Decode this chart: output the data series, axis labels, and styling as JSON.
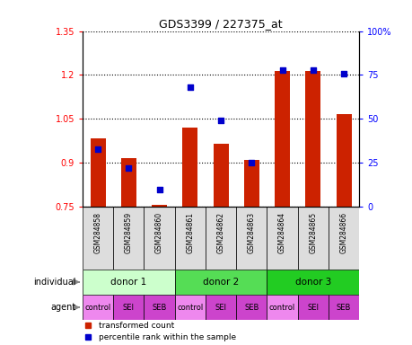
{
  "title": "GDS3399 / 227375_at",
  "samples": [
    "GSM284858",
    "GSM284859",
    "GSM284860",
    "GSM284861",
    "GSM284862",
    "GSM284863",
    "GSM284864",
    "GSM284865",
    "GSM284866"
  ],
  "red_values": [
    0.985,
    0.915,
    0.757,
    1.02,
    0.965,
    0.91,
    1.215,
    1.215,
    1.065
  ],
  "blue_percentile": [
    33,
    22,
    10,
    68,
    49,
    25,
    78,
    78,
    76
  ],
  "ylim_left": [
    0.75,
    1.35
  ],
  "ylim_right": [
    0,
    100
  ],
  "yticks_left": [
    0.75,
    0.9,
    1.05,
    1.2,
    1.35
  ],
  "ytick_labels_left": [
    "0.75",
    "0.9",
    "1.05",
    "1.2",
    "1.35"
  ],
  "yticks_right": [
    0,
    25,
    50,
    75,
    100
  ],
  "ytick_labels_right": [
    "0",
    "25",
    "50",
    "75",
    "100%"
  ],
  "donors": [
    {
      "label": "donor 1",
      "start": 0,
      "end": 3,
      "color": "#ccffcc"
    },
    {
      "label": "donor 2",
      "start": 3,
      "end": 6,
      "color": "#55dd55"
    },
    {
      "label": "donor 3",
      "start": 6,
      "end": 9,
      "color": "#22cc22"
    }
  ],
  "agents": [
    "control",
    "SEI",
    "SEB",
    "control",
    "SEI",
    "SEB",
    "control",
    "SEI",
    "SEB"
  ],
  "agent_colors": [
    "#ee88ee",
    "#cc44cc",
    "#cc44cc",
    "#ee88ee",
    "#cc44cc",
    "#cc44cc",
    "#ee88ee",
    "#cc44cc",
    "#cc44cc"
  ],
  "bar_color": "#cc2200",
  "dot_color": "#0000cc",
  "bg_color": "#ffffff",
  "legend_red": "transformed count",
  "legend_blue": "percentile rank within the sample",
  "bar_width": 0.5
}
